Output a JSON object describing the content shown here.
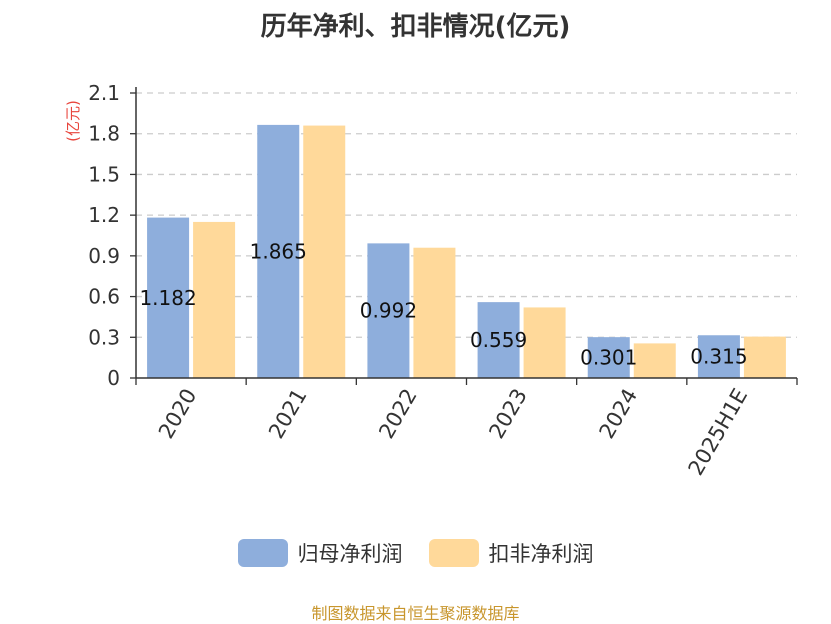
{
  "chart_data": {
    "type": "bar",
    "title": "历年净利、扣非情况(亿元)",
    "ylabel": "(亿元)",
    "ylim": [
      0,
      2.1
    ],
    "yticks": [
      "0",
      "0.3",
      "0.6",
      "0.9",
      "1.2",
      "1.5",
      "1.8",
      "2.1"
    ],
    "categories": [
      "2020",
      "2021",
      "2022",
      "2023",
      "2024",
      "2025H1E"
    ],
    "series": [
      {
        "name": "归母净利润",
        "values": [
          1.182,
          1.865,
          0.992,
          0.559,
          0.301,
          0.315
        ],
        "labels": [
          "1.182",
          "1.865",
          "0.992",
          "0.559",
          "0.301",
          "0.315"
        ],
        "color": "#8eaedc"
      },
      {
        "name": "扣非净利润",
        "values": [
          1.15,
          1.86,
          0.96,
          0.52,
          0.255,
          0.305
        ],
        "color": "#ffd99a"
      }
    ],
    "grid": true,
    "legend_position": "bottom"
  },
  "source": "制图数据来自恒生聚源数据库"
}
